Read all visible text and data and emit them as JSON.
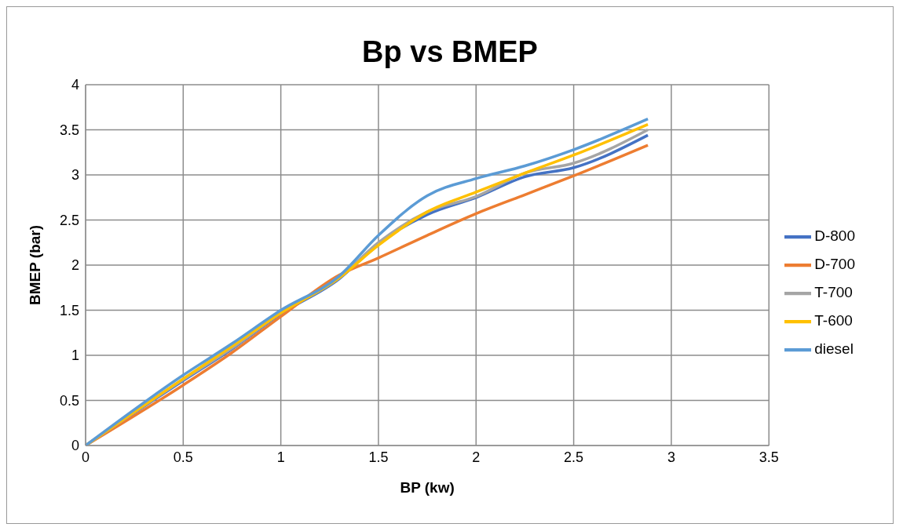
{
  "chart_data": {
    "type": "line",
    "title": "Bp vs BMEP",
    "xlabel": "BP (kw)",
    "ylabel": "BMEP (bar)",
    "x": [
      0,
      0.5,
      0.75,
      1,
      1.3,
      1.5,
      1.75,
      2,
      2.25,
      2.5,
      2.88
    ],
    "series": [
      {
        "name": "D-800",
        "color": "#4472c4",
        "values": [
          0,
          0.72,
          1.07,
          1.46,
          1.85,
          2.24,
          2.56,
          2.75,
          2.98,
          3.08,
          3.44
        ]
      },
      {
        "name": "D-700",
        "color": "#ed7d31",
        "values": [
          0,
          0.67,
          1.03,
          1.43,
          1.89,
          2.08,
          2.33,
          2.57,
          2.78,
          2.99,
          3.33
        ]
      },
      {
        "name": "T-700",
        "color": "#a5a5a5",
        "values": [
          0,
          0.73,
          1.08,
          1.47,
          1.86,
          2.25,
          2.59,
          2.76,
          3.02,
          3.13,
          3.5
        ]
      },
      {
        "name": "T-600",
        "color": "#ffc000",
        "values": [
          0,
          0.74,
          1.1,
          1.47,
          1.86,
          2.22,
          2.59,
          2.81,
          3.02,
          3.22,
          3.56
        ]
      },
      {
        "name": "diesel",
        "color": "#5b9bd5",
        "values": [
          0,
          0.78,
          1.13,
          1.5,
          1.88,
          2.33,
          2.77,
          2.96,
          3.1,
          3.28,
          3.62
        ]
      }
    ],
    "xlim": [
      0,
      3.5
    ],
    "xticks": [
      0,
      0.5,
      1,
      1.5,
      2,
      2.5,
      3,
      3.5
    ],
    "ylim": [
      0,
      4
    ],
    "yticks": [
      0,
      0.5,
      1,
      1.5,
      2,
      2.5,
      3,
      3.5,
      4
    ],
    "grid": true,
    "legend": "right",
    "marker": "none",
    "line_style": "solid"
  }
}
